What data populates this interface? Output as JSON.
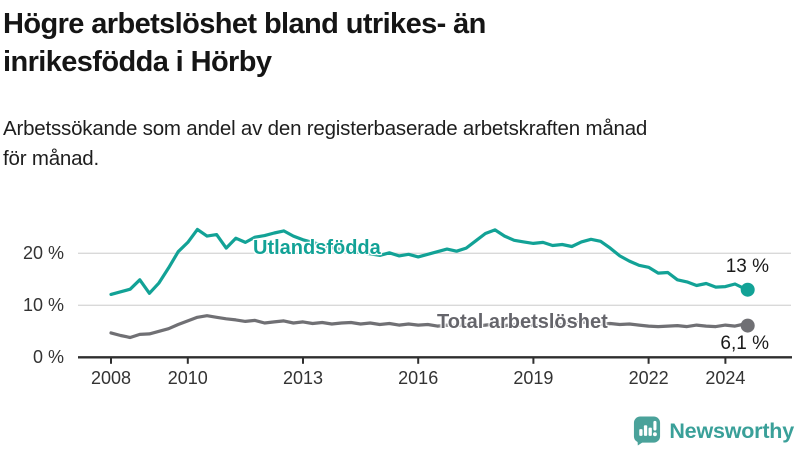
{
  "page": {
    "title_line1": "Högre arbetslöshet bland utrikes- än",
    "title_line2": "inrikesfödda i Hörby",
    "subtitle_line1": "Arbetssökande som andel av den registerbaserade arbetskraften månad",
    "subtitle_line2": "för månad."
  },
  "brand": {
    "name": "Newsworthy",
    "text_color": "#3aa099",
    "icon_color": "#4aa29a",
    "icon": "bar-chart-speech-bubble-icon"
  },
  "chart_data": {
    "type": "line",
    "title": "Högre arbetslöshet bland utrikes- än inrikesfödda i Hörby",
    "subtitle": "Arbetssökande som andel av den registerbaserade arbetskraften månad för månad.",
    "xlabel": "",
    "ylabel": "",
    "grid": "horizontal",
    "legend_position": "inline-on-line",
    "xlim": [
      2007.1,
      2025.7
    ],
    "ylim": [
      0,
      27.5
    ],
    "xticks": [
      2008,
      2010,
      2013,
      2016,
      2019,
      2022,
      2024
    ],
    "xtick_labels": [
      "2008",
      "2010",
      "2013",
      "2016",
      "2019",
      "2022",
      "2024"
    ],
    "yticks": [
      0,
      10,
      20
    ],
    "ytick_labels": [
      "0 %",
      "10 %",
      "20 %"
    ],
    "x_years": [
      2008,
      2008.25,
      2008.5,
      2008.75,
      2009,
      2009.25,
      2009.5,
      2009.75,
      2010,
      2010.25,
      2010.5,
      2010.75,
      2011,
      2011.25,
      2011.5,
      2011.75,
      2012,
      2012.25,
      2012.5,
      2012.75,
      2013,
      2013.25,
      2013.5,
      2013.75,
      2014,
      2014.25,
      2014.5,
      2014.75,
      2015,
      2015.25,
      2015.5,
      2015.75,
      2016,
      2016.25,
      2016.5,
      2016.75,
      2017,
      2017.25,
      2017.5,
      2017.75,
      2018,
      2018.25,
      2018.5,
      2018.75,
      2019,
      2019.25,
      2019.5,
      2019.75,
      2020,
      2020.25,
      2020.5,
      2020.75,
      2021,
      2021.25,
      2021.5,
      2021.75,
      2022,
      2022.25,
      2022.5,
      2022.75,
      2023,
      2023.25,
      2023.5,
      2023.75,
      2024,
      2024.25,
      2024.5,
      2024.58
    ],
    "series": [
      {
        "name": "Utlandsfödda",
        "color": "#12a296",
        "end_label": "13 %",
        "end_value": 13,
        "values": [
          12.1,
          12.6,
          13.1,
          14.9,
          12.3,
          14.3,
          17.2,
          20.3,
          22.1,
          24.6,
          23.3,
          23.6,
          21.0,
          22.9,
          22.1,
          23.1,
          23.4,
          23.9,
          24.3,
          23.3,
          22.6,
          22.1,
          21.6,
          21.1,
          20.7,
          20.4,
          20.1,
          19.9,
          19.6,
          20.1,
          19.5,
          19.8,
          19.3,
          19.8,
          20.3,
          20.8,
          20.4,
          21.0,
          22.4,
          23.8,
          24.5,
          23.3,
          22.5,
          22.2,
          21.9,
          22.1,
          21.5,
          21.7,
          21.3,
          22.2,
          22.7,
          22.3,
          21.0,
          19.5,
          18.5,
          17.7,
          17.3,
          16.2,
          16.3,
          14.9,
          14.5,
          13.8,
          14.2,
          13.5,
          13.6,
          14.1,
          13.2,
          13.0
        ]
      },
      {
        "name": "Total arbetslöshet",
        "color": "#707074",
        "label_color": "#65656b",
        "end_label": "6,1 %",
        "end_value": 6.1,
        "values": [
          4.7,
          4.2,
          3.8,
          4.4,
          4.5,
          5.0,
          5.5,
          6.3,
          7.0,
          7.7,
          8.0,
          7.7,
          7.4,
          7.2,
          6.9,
          7.1,
          6.6,
          6.8,
          7.0,
          6.6,
          6.8,
          6.5,
          6.7,
          6.4,
          6.6,
          6.7,
          6.4,
          6.6,
          6.3,
          6.5,
          6.2,
          6.4,
          6.2,
          6.3,
          6.0,
          6.2,
          6.1,
          6.3,
          6.0,
          6.2,
          6.4,
          6.1,
          6.3,
          6.0,
          6.2,
          6.0,
          6.1,
          6.3,
          6.5,
          6.8,
          6.6,
          6.4,
          6.5,
          6.3,
          6.4,
          6.2,
          6.0,
          5.9,
          6.0,
          6.1,
          5.9,
          6.2,
          6.0,
          5.9,
          6.2,
          6.0,
          6.4,
          6.1
        ]
      }
    ]
  }
}
